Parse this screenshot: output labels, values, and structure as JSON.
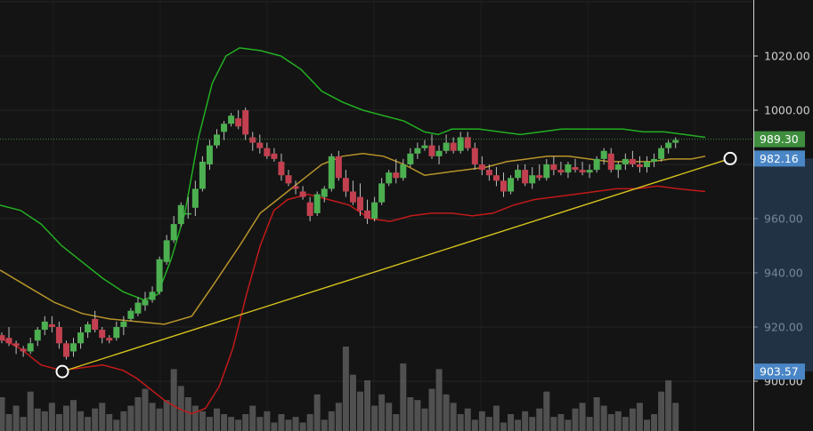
{
  "chart_data": {
    "type": "candlestick",
    "price_axis": {
      "ticks": [
        "1020.00",
        "1000.00",
        "960.00",
        "940.00",
        "920.00",
        "900.00"
      ],
      "ylim": [
        890,
        1036
      ]
    },
    "last_price_label": "989.30",
    "trendline_end_label": "982.16",
    "trendline_start_label": "903.57",
    "trendline": {
      "start": [
        0,
        903.57
      ],
      "end": [
        126,
        982.16
      ]
    },
    "colors": {
      "background": "#141414",
      "axis_text": "#cfcfcf",
      "up_candle": "#4caf50",
      "down_candle": "#c2404f",
      "bollinger_upper": "#22b022",
      "bollinger_middle": "#b8952a",
      "bollinger_lower": "#c21a1a",
      "trendline": "#d6c21e",
      "last_price_badge": "#3e8e3e",
      "trend_badge": "#4a86c5",
      "volume": "#5a5a5a"
    },
    "candles": [
      [
        917,
        918,
        914,
        915
      ],
      [
        916,
        920,
        913,
        914
      ],
      [
        914,
        915,
        910,
        913
      ],
      [
        912,
        913,
        909,
        911
      ],
      [
        911,
        916,
        910,
        914
      ],
      [
        915,
        920,
        913,
        919
      ],
      [
        919,
        924,
        917,
        922
      ],
      [
        921,
        924,
        918,
        920
      ],
      [
        920,
        922,
        912,
        914
      ],
      [
        914,
        915,
        908,
        909
      ],
      [
        911,
        916,
        909,
        914
      ],
      [
        914,
        920,
        912,
        918
      ],
      [
        918,
        922,
        916,
        921
      ],
      [
        923,
        926,
        918,
        919
      ],
      [
        919,
        920,
        914,
        916
      ],
      [
        916,
        917,
        914,
        915
      ],
      [
        916,
        922,
        915,
        920
      ],
      [
        920,
        924,
        917,
        922
      ],
      [
        923,
        927,
        922,
        926
      ],
      [
        925,
        931,
        924,
        929
      ],
      [
        928,
        933,
        926,
        930
      ],
      [
        930,
        935,
        929,
        933
      ],
      [
        933,
        946,
        932,
        945
      ],
      [
        944,
        954,
        943,
        952
      ],
      [
        952,
        961,
        951,
        958
      ],
      [
        958,
        966,
        957,
        965
      ],
      [
        962,
        968,
        960,
        962
      ],
      [
        964,
        974,
        961,
        971
      ],
      [
        971,
        983,
        970,
        981
      ],
      [
        980,
        989,
        978,
        987
      ],
      [
        987,
        993,
        986,
        991
      ],
      [
        992,
        996,
        989,
        995
      ],
      [
        995,
        999,
        994,
        998
      ],
      [
        997,
        1000,
        993,
        994
      ],
      [
        1000,
        1001,
        989,
        991
      ],
      [
        990,
        992,
        985,
        988
      ],
      [
        988,
        991,
        984,
        986
      ],
      [
        986,
        988,
        982,
        983
      ],
      [
        984,
        986,
        981,
        982
      ],
      [
        981,
        984,
        974,
        976
      ],
      [
        976,
        978,
        972,
        973
      ],
      [
        972,
        974,
        969,
        971
      ],
      [
        970,
        972,
        967,
        968
      ],
      [
        966,
        968,
        959,
        961
      ],
      [
        962,
        970,
        961,
        969
      ],
      [
        968,
        972,
        966,
        971
      ],
      [
        971,
        984,
        970,
        983
      ],
      [
        983,
        985,
        974,
        975
      ],
      [
        975,
        978,
        968,
        970
      ],
      [
        970,
        974,
        965,
        966
      ],
      [
        968,
        973,
        961,
        963
      ],
      [
        963,
        967,
        958,
        960
      ],
      [
        960,
        968,
        959,
        966
      ],
      [
        966,
        975,
        965,
        973
      ],
      [
        973,
        978,
        972,
        977
      ],
      [
        977,
        982,
        973,
        975
      ],
      [
        975,
        982,
        974,
        980
      ],
      [
        980,
        986,
        979,
        984
      ],
      [
        984,
        988,
        982,
        986
      ],
      [
        986,
        989,
        985,
        987
      ],
      [
        987,
        991,
        982,
        983
      ],
      [
        983,
        987,
        980,
        985
      ],
      [
        985,
        991,
        984,
        988
      ],
      [
        988,
        990,
        984,
        985
      ],
      [
        985,
        992,
        984,
        990
      ],
      [
        990,
        992,
        985,
        986
      ],
      [
        986,
        988,
        978,
        980
      ],
      [
        980,
        983,
        976,
        978
      ],
      [
        978,
        980,
        974,
        976
      ],
      [
        976,
        979,
        972,
        974
      ],
      [
        974,
        977,
        968,
        970
      ],
      [
        970,
        976,
        969,
        975
      ],
      [
        975,
        980,
        974,
        978
      ],
      [
        978,
        980,
        972,
        973
      ],
      [
        973,
        979,
        971,
        976
      ],
      [
        976,
        980,
        974,
        975
      ],
      [
        975,
        982,
        974,
        980
      ],
      [
        980,
        983,
        976,
        978
      ],
      [
        978,
        981,
        976,
        977
      ],
      [
        977,
        981,
        975,
        980
      ],
      [
        979,
        982,
        977,
        978
      ],
      [
        978,
        981,
        976,
        977
      ],
      [
        977,
        980,
        975,
        978
      ],
      [
        978,
        983,
        977,
        982
      ],
      [
        982,
        986,
        980,
        985
      ],
      [
        984,
        986,
        977,
        978
      ],
      [
        978,
        981,
        975,
        980
      ],
      [
        980,
        984,
        978,
        982
      ],
      [
        982,
        985,
        979,
        980
      ],
      [
        980,
        983,
        977,
        979
      ],
      [
        979,
        983,
        977,
        981
      ],
      [
        981,
        984,
        979,
        982
      ],
      [
        982,
        987,
        981,
        986
      ],
      [
        986,
        989,
        984,
        988
      ],
      [
        988,
        990,
        986,
        989
      ]
    ],
    "bollinger": {
      "upper": [
        [
          0,
          965
        ],
        [
          6,
          963
        ],
        [
          12,
          958
        ],
        [
          18,
          950
        ],
        [
          24,
          944
        ],
        [
          30,
          938
        ],
        [
          36,
          933
        ],
        [
          42,
          930
        ],
        [
          46,
          932
        ],
        [
          50,
          945
        ],
        [
          54,
          962
        ],
        [
          58,
          990
        ],
        [
          62,
          1010
        ],
        [
          66,
          1020
        ],
        [
          70,
          1023
        ],
        [
          76,
          1022
        ],
        [
          82,
          1020
        ],
        [
          88,
          1015
        ],
        [
          94,
          1007
        ],
        [
          100,
          1003
        ],
        [
          106,
          1000
        ],
        [
          112,
          998
        ],
        [
          118,
          996
        ],
        [
          124,
          992
        ],
        [
          128,
          991
        ],
        [
          132,
          993
        ],
        [
          136,
          993
        ],
        [
          140,
          993
        ],
        [
          146,
          992
        ],
        [
          152,
          991
        ],
        [
          158,
          992
        ],
        [
          164,
          993
        ],
        [
          170,
          993
        ],
        [
          176,
          993
        ],
        [
          182,
          993
        ],
        [
          188,
          992
        ],
        [
          194,
          992
        ],
        [
          200,
          991
        ],
        [
          206,
          990
        ]
      ],
      "middle": [
        [
          0,
          941
        ],
        [
          8,
          935
        ],
        [
          16,
          929
        ],
        [
          24,
          925
        ],
        [
          32,
          923
        ],
        [
          40,
          922
        ],
        [
          48,
          921
        ],
        [
          56,
          924
        ],
        [
          62,
          935
        ],
        [
          70,
          950
        ],
        [
          76,
          962
        ],
        [
          82,
          968
        ],
        [
          88,
          974
        ],
        [
          94,
          980
        ],
        [
          100,
          983
        ],
        [
          106,
          984
        ],
        [
          112,
          983
        ],
        [
          118,
          980
        ],
        [
          124,
          976
        ],
        [
          130,
          977
        ],
        [
          136,
          978
        ],
        [
          142,
          979
        ],
        [
          148,
          981
        ],
        [
          154,
          982
        ],
        [
          160,
          983
        ],
        [
          166,
          983
        ],
        [
          172,
          982
        ],
        [
          178,
          981
        ],
        [
          184,
          981
        ],
        [
          190,
          981
        ],
        [
          196,
          982
        ],
        [
          202,
          982
        ],
        [
          206,
          983
        ]
      ],
      "lower": [
        [
          0,
          916
        ],
        [
          6,
          912
        ],
        [
          12,
          906
        ],
        [
          18,
          904
        ],
        [
          24,
          905
        ],
        [
          30,
          906
        ],
        [
          36,
          904
        ],
        [
          40,
          901
        ],
        [
          44,
          897
        ],
        [
          48,
          893
        ],
        [
          52,
          890
        ],
        [
          56,
          888
        ],
        [
          60,
          890
        ],
        [
          64,
          898
        ],
        [
          68,
          912
        ],
        [
          72,
          932
        ],
        [
          76,
          950
        ],
        [
          80,
          963
        ],
        [
          84,
          967
        ],
        [
          90,
          969
        ],
        [
          96,
          967
        ],
        [
          102,
          965
        ],
        [
          108,
          960
        ],
        [
          114,
          959
        ],
        [
          120,
          961
        ],
        [
          126,
          962
        ],
        [
          132,
          962
        ],
        [
          138,
          961
        ],
        [
          144,
          962
        ],
        [
          150,
          965
        ],
        [
          156,
          967
        ],
        [
          162,
          968
        ],
        [
          168,
          969
        ],
        [
          174,
          970
        ],
        [
          180,
          971
        ],
        [
          186,
          971
        ],
        [
          192,
          972
        ],
        [
          198,
          971
        ],
        [
          206,
          970
        ]
      ]
    },
    "volume": [
      12,
      6,
      9,
      5,
      14,
      8,
      7,
      10,
      6,
      9,
      11,
      7,
      5,
      8,
      10,
      6,
      4,
      7,
      9,
      12,
      15,
      10,
      8,
      11,
      22,
      16,
      12,
      9,
      7,
      5,
      8,
      6,
      5,
      4,
      6,
      9,
      5,
      7,
      3,
      6,
      4,
      5,
      3,
      6,
      13,
      4,
      7,
      10,
      30,
      20,
      14,
      18,
      9,
      13,
      10,
      6,
      24,
      12,
      11,
      8,
      15,
      22,
      13,
      10,
      6,
      8,
      4,
      7,
      5,
      9,
      3,
      6,
      4,
      7,
      5,
      8,
      14,
      5,
      6,
      4,
      8,
      10,
      5,
      12,
      9,
      6,
      7,
      5,
      8,
      10,
      4,
      6,
      14,
      18,
      10
    ]
  }
}
